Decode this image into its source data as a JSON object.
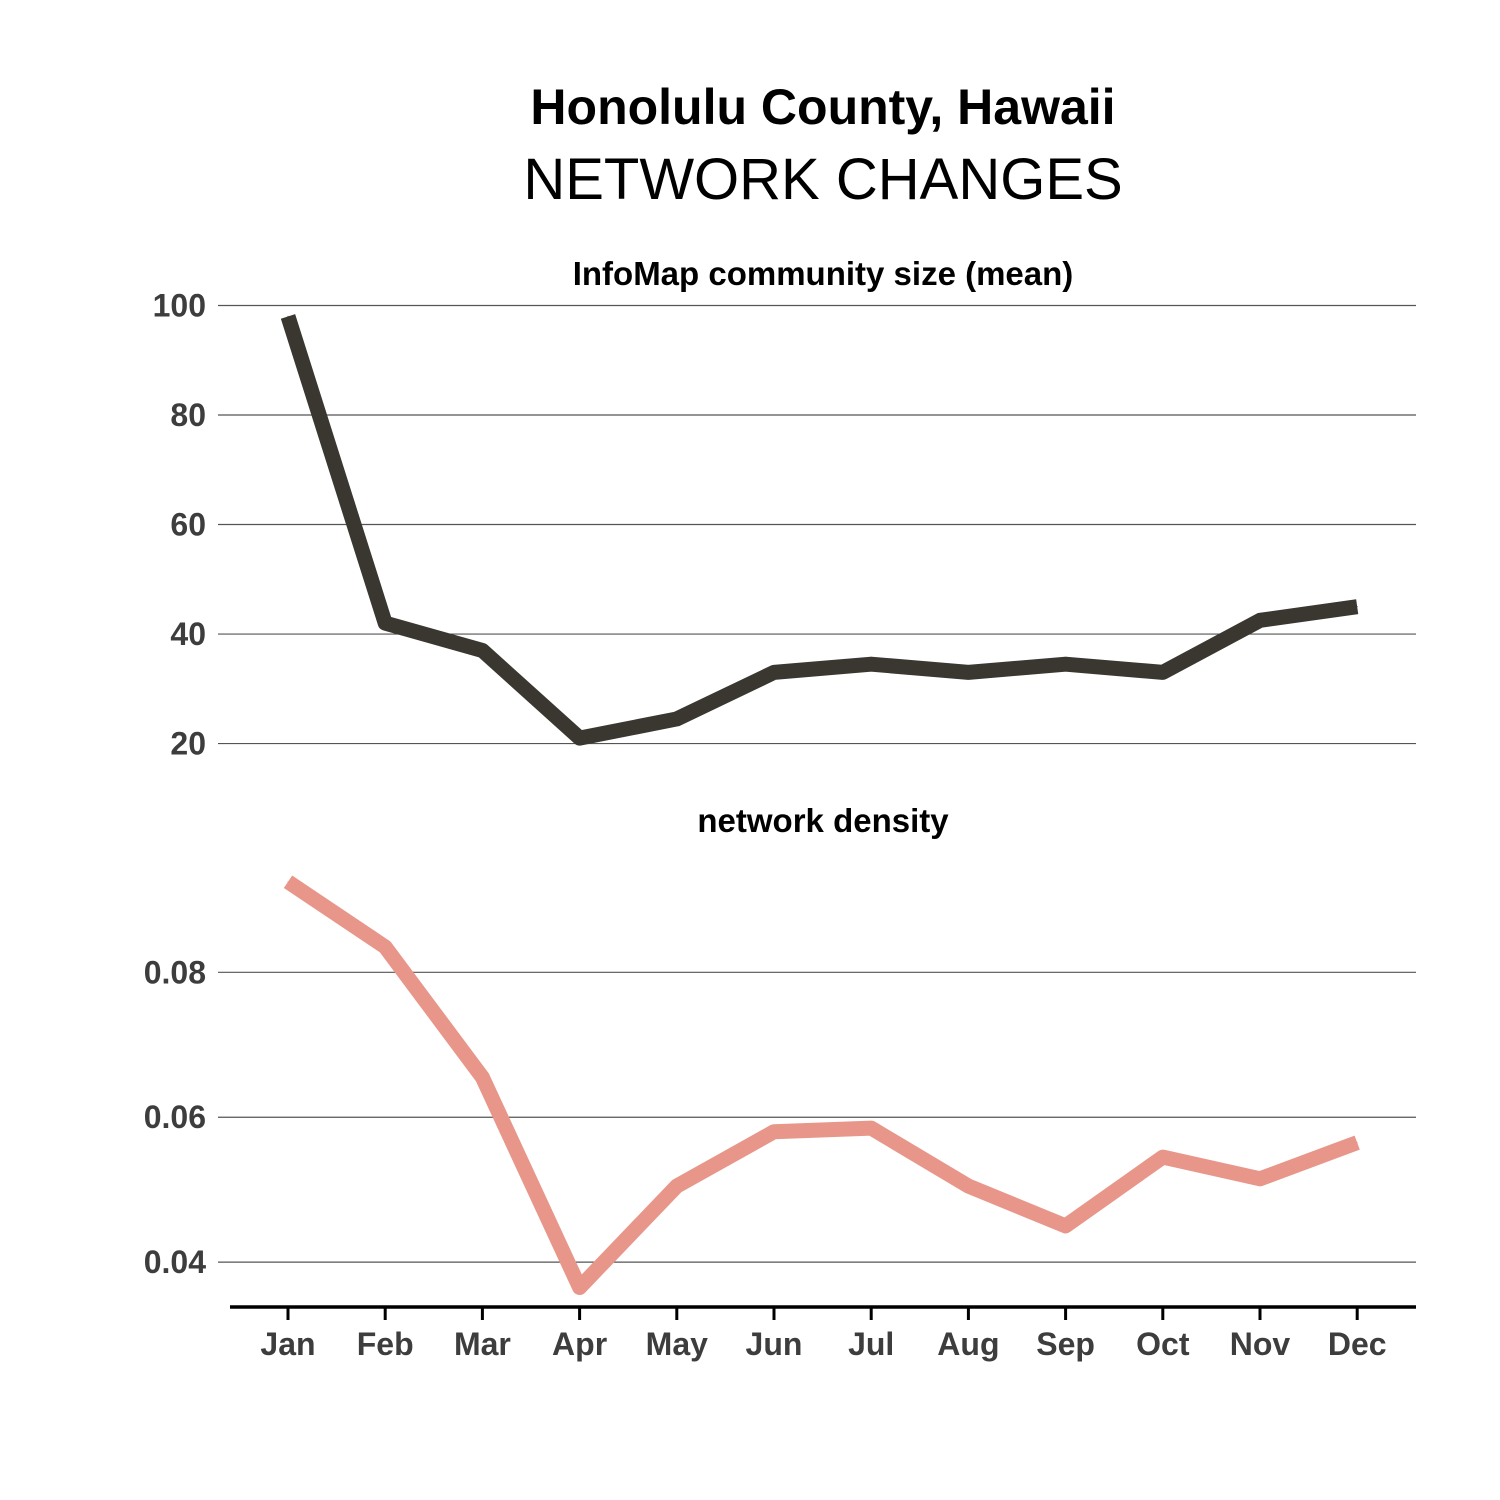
{
  "title": {
    "line1": "Honolulu County, Hawaii",
    "line2": "NETWORK CHANGES"
  },
  "chart_data": [
    {
      "type": "line",
      "title": "InfoMap community size (mean)",
      "x": [
        "Jan",
        "Feb",
        "Mar",
        "Apr",
        "May",
        "Jun",
        "Jul",
        "Aug",
        "Sep",
        "Oct",
        "Nov",
        "Dec"
      ],
      "series": [
        {
          "values": [
            98,
            42,
            37,
            21,
            24.5,
            33,
            34.5,
            33,
            34.5,
            33,
            42.5,
            45
          ],
          "color": "#3a3730"
        }
      ],
      "yticks": [
        "20",
        "40",
        "60",
        "80",
        "100"
      ],
      "ylim": [
        17,
        101
      ],
      "grid": true
    },
    {
      "type": "line",
      "title": "network density",
      "x": [
        "Jan",
        "Feb",
        "Mar",
        "Apr",
        "May",
        "Jun",
        "Jul",
        "Aug",
        "Sep",
        "Oct",
        "Nov",
        "Dec"
      ],
      "series": [
        {
          "values": [
            0.0925,
            0.0835,
            0.0655,
            0.0365,
            0.0505,
            0.058,
            0.0585,
            0.0505,
            0.045,
            0.0545,
            0.0515,
            0.0565
          ],
          "color": "#e8968a"
        }
      ],
      "yticks": [
        "0.04",
        "0.06",
        "0.08"
      ],
      "ylim": [
        0.0345,
        0.0955
      ],
      "grid": true
    }
  ]
}
